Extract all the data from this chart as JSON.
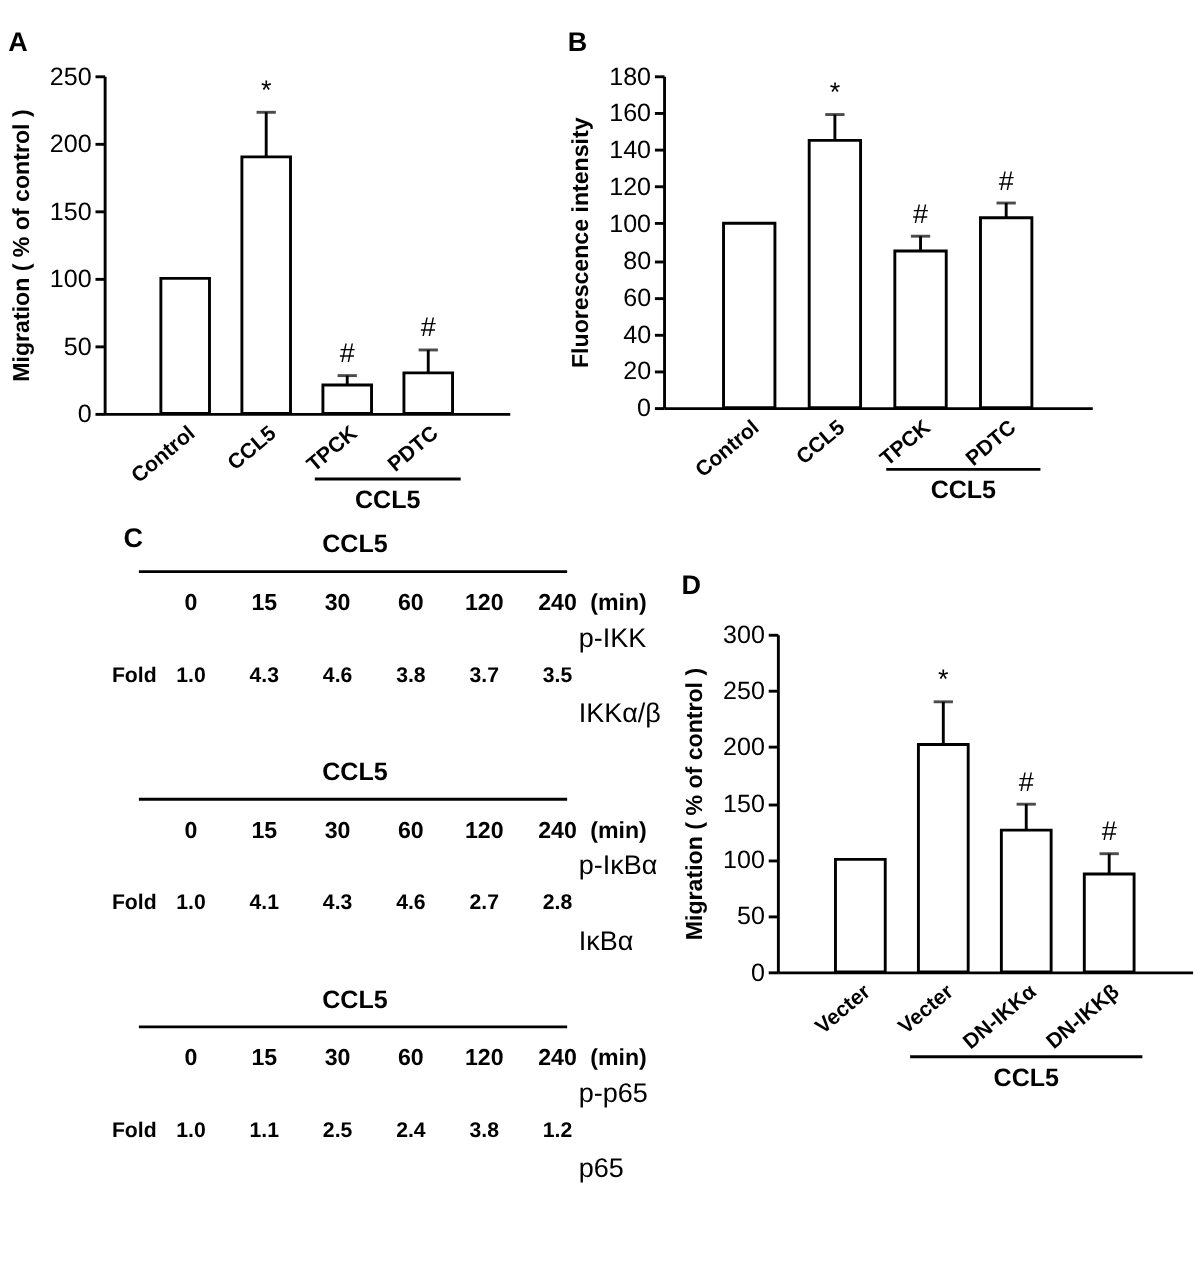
{
  "chart_data": [
    {
      "type": "bar",
      "title": "A",
      "ylabel": "Migration ( % of control )",
      "categories": [
        "Control",
        "CCL5",
        "TPCK",
        "PDTC"
      ],
      "values": [
        100,
        190,
        21,
        30
      ],
      "color": "#ffffff",
      "errors": [
        null,
        [
          190,
          223
        ],
        [
          21,
          28
        ],
        [
          30,
          47
        ]
      ],
      "ylim": [
        0,
        250
      ],
      "yticks": [
        0,
        50,
        100,
        150,
        200,
        250
      ],
      "annotations": [
        {
          "text": "*",
          "x": "CCL5",
          "y": 223
        },
        {
          "text": "#",
          "x": "TPCK",
          "y": 28
        },
        {
          "text": "#",
          "x": "PDTC",
          "y": 47
        },
        "CCL5"
      ]
    },
    {
      "type": "bar",
      "title": "B",
      "ylabel": "Fluorescence intensity",
      "categories": [
        "Control",
        "CCL5",
        "TPCK",
        "PDTC"
      ],
      "values": [
        100,
        145,
        85,
        103
      ],
      "color": "#ffffff",
      "errors": [
        null,
        [
          145,
          159
        ],
        [
          85,
          93
        ],
        [
          103,
          111
        ]
      ],
      "ylim": [
        0,
        180
      ],
      "yticks": [
        0,
        20,
        40,
        60,
        80,
        100,
        120,
        140,
        160,
        180
      ],
      "annotations": [
        {
          "text": "*",
          "x": "CCL5",
          "y": 159
        },
        {
          "text": "#",
          "x": "TPCK",
          "y": 93
        },
        {
          "text": "#",
          "x": "PDTC",
          "y": 111
        },
        "CCL5"
      ]
    },
    {
      "type": "other",
      "title": "C",
      "subtitle": "CCL5",
      "categories": [
        "0",
        "15",
        "30",
        "60",
        "120",
        "240"
      ],
      "xlabel": "(min)",
      "values": [
        1.0,
        4.3,
        4.6,
        3.8,
        3.7,
        3.5
      ],
      "value_labels": [
        "1.0",
        "4.3",
        "4.6",
        "3.8",
        "3.7",
        "3.5"
      ],
      "annotations": [
        "Fold",
        "p-IKK",
        "IKKα/β"
      ]
    },
    {
      "type": "other",
      "title": "CCL5",
      "categories": [
        "0",
        "15",
        "30",
        "60",
        "120",
        "240"
      ],
      "xlabel": "(min)",
      "values": [
        1.0,
        4.1,
        4.3,
        4.6,
        2.7,
        2.8
      ],
      "value_labels": [
        "1.0",
        "4.1",
        "4.3",
        "4.6",
        "2.7",
        "2.8"
      ],
      "annotations": [
        "Fold",
        "p-IκBα",
        "IκBα"
      ]
    },
    {
      "type": "other",
      "title": "CCL5",
      "categories": [
        "0",
        "15",
        "30",
        "60",
        "120",
        "240"
      ],
      "xlabel": "(min)",
      "values": [
        1.0,
        1.1,
        2.5,
        2.4,
        3.8,
        1.2
      ],
      "value_labels": [
        "1.0",
        "1.1",
        "2.5",
        "2.4",
        "3.8",
        "1.2"
      ],
      "annotations": [
        "Fold",
        "p-p65",
        "p65"
      ]
    },
    {
      "type": "bar",
      "title": "D",
      "ylabel": "Migration ( % of control )",
      "categories": [
        "Vecter",
        "Vecter",
        "DN-IKKα",
        "DN-IKKβ"
      ],
      "values": [
        100,
        202,
        126,
        87
      ],
      "color": "#ffffff",
      "errors": [
        null,
        [
          202,
          240
        ],
        [
          126,
          149
        ],
        [
          87,
          105
        ]
      ],
      "ylim": [
        0,
        300
      ],
      "yticks": [
        0,
        50,
        100,
        150,
        200,
        250,
        300
      ],
      "annotations": [
        {
          "text": "*",
          "y": 240
        },
        {
          "text": "#",
          "x": "DN-IKKα",
          "y": 149
        },
        {
          "text": "#",
          "x": "DN-IKKβ",
          "y": 105
        },
        "CCL5"
      ]
    }
  ]
}
